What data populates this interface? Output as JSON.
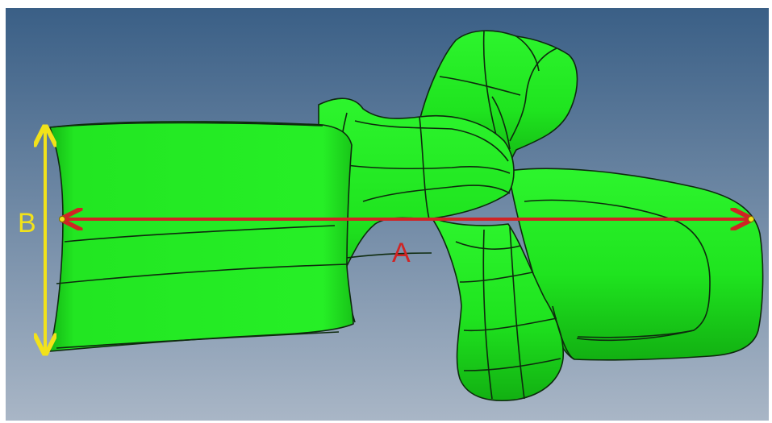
{
  "labels": {
    "a": "A",
    "b": "B"
  },
  "colors": {
    "bone": "#22ee22",
    "bone_shade": "#12b012",
    "mesh": "#0e2a0e",
    "bg_top": "#3a5f86",
    "bg_bottom": "#a9b6c6",
    "measure_a": "#d02424",
    "measure_b": "#f2e21a"
  }
}
